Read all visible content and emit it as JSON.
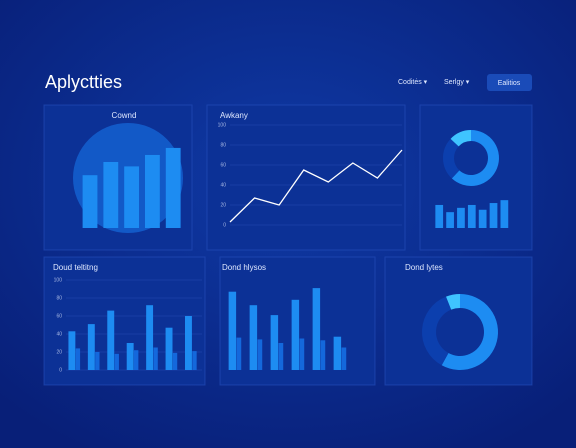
{
  "header": {
    "title": "Aplyctties",
    "menu": [
      "Coditės ▾",
      "Serlgy ▾"
    ],
    "button": "Ealitios"
  },
  "chart_data": [
    {
      "type": "bar",
      "title": "Cownd",
      "values": [
        60,
        75,
        70,
        83,
        91
      ],
      "color": "#1d8cf2",
      "ylim": [
        0,
        100
      ]
    },
    {
      "type": "line",
      "title": "Awkany",
      "values": [
        3,
        27,
        20,
        55,
        43,
        62,
        47,
        75
      ],
      "color": "#ffffff",
      "ylim": [
        0,
        100
      ],
      "yticks": [
        0,
        20,
        40,
        60,
        80,
        100
      ],
      "grid": true
    },
    {
      "type": "pie",
      "values": [
        62,
        25,
        13
      ],
      "colors": [
        "#1d8cf2",
        "#0c3fae",
        "#3fc4ff"
      ]
    },
    {
      "type": "bar",
      "values": [
        48,
        33,
        42,
        48,
        38,
        52,
        58
      ],
      "color": "#1d8cf2",
      "ylim": [
        0,
        100
      ]
    },
    {
      "type": "bar",
      "title": "Doud teltitng",
      "series": [
        {
          "color": "#1d8cf2",
          "values": [
            43,
            51,
            66,
            30,
            72,
            47,
            60
          ]
        },
        {
          "color": "#1468dc",
          "values": [
            24,
            20,
            18,
            22,
            25,
            19,
            21
          ]
        }
      ],
      "ylim": [
        0,
        100
      ],
      "yticks": [
        0,
        20,
        40,
        60,
        80,
        100
      ],
      "grid": true
    },
    {
      "type": "bar",
      "title": "Dond hlysos",
      "series": [
        {
          "color": "#1d8cf2",
          "values": [
            87,
            72,
            61,
            78,
            91,
            37
          ]
        },
        {
          "color": "#1468dc",
          "values": [
            36,
            34,
            30,
            35,
            33,
            25
          ]
        }
      ],
      "ylim": [
        0,
        100
      ]
    },
    {
      "type": "pie",
      "title": "Dond lytes",
      "values": [
        58,
        36,
        6
      ],
      "colors": [
        "#1d8cf2",
        "#0c3fae",
        "#3fc4ff"
      ]
    }
  ]
}
